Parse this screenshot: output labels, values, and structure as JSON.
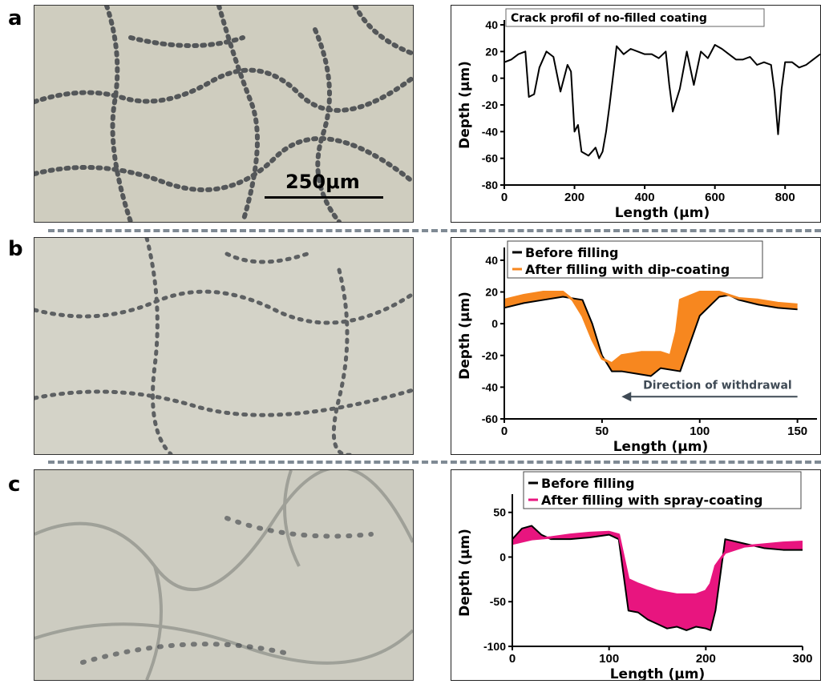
{
  "panels": [
    {
      "letter": "a"
    },
    {
      "letter": "b"
    },
    {
      "letter": "c"
    }
  ],
  "scale_bar_label": "250μm",
  "colors": {
    "before": "#000000",
    "dip_coating": "#f7871f",
    "spray_coating": "#e8157f",
    "divider": "#7f8a94",
    "micrograph_bg": "#cfcdbf",
    "crack": "#2c3038"
  },
  "chart_data": [
    {
      "type": "line",
      "annotation": "Crack profil of no-filled coating",
      "xlabel": "Length (μm)",
      "ylabel": "Depth (μm)",
      "xlim": [
        0,
        900
      ],
      "ylim": [
        -80,
        40
      ],
      "xticks": [
        0,
        200,
        400,
        600,
        800
      ],
      "yticks": [
        -80,
        -60,
        -40,
        -20,
        0,
        20,
        40
      ],
      "series": [
        {
          "color": "#000000",
          "x": [
            0,
            20,
            40,
            60,
            70,
            85,
            100,
            120,
            140,
            160,
            180,
            190,
            200,
            210,
            220,
            240,
            260,
            270,
            280,
            290,
            300,
            320,
            340,
            360,
            380,
            400,
            420,
            440,
            460,
            470,
            480,
            500,
            520,
            540,
            560,
            580,
            600,
            620,
            640,
            660,
            680,
            700,
            720,
            740,
            760,
            770,
            780,
            790,
            800,
            820,
            840,
            860,
            880,
            900
          ],
          "values": [
            12,
            14,
            18,
            20,
            -14,
            -12,
            8,
            20,
            16,
            -10,
            10,
            5,
            -40,
            -35,
            -55,
            -58,
            -52,
            -60,
            -55,
            -40,
            -20,
            24,
            18,
            22,
            20,
            18,
            18,
            15,
            20,
            -5,
            -25,
            -8,
            20,
            -5,
            20,
            15,
            25,
            22,
            18,
            14,
            14,
            16,
            10,
            12,
            10,
            -10,
            -42,
            -8,
            12,
            12,
            8,
            10,
            14,
            18
          ]
        }
      ]
    },
    {
      "type": "area",
      "xlabel": "Length (μm)",
      "ylabel": "Depth (μm)",
      "xlim": [
        0,
        160
      ],
      "ylim": [
        -60,
        45
      ],
      "xticks": [
        0,
        50,
        100,
        150
      ],
      "yticks": [
        -60,
        -40,
        -20,
        0,
        20,
        40
      ],
      "legend_position": "top",
      "annotation": "Direction of withdrawal",
      "series": [
        {
          "name": "Before filling",
          "color": "#000000",
          "x": [
            0,
            10,
            20,
            30,
            40,
            45,
            50,
            55,
            60,
            70,
            75,
            80,
            90,
            100,
            110,
            115,
            120,
            130,
            140,
            150
          ],
          "values": [
            10,
            13,
            15,
            17,
            15,
            0,
            -20,
            -30,
            -30,
            -32,
            -33,
            -28,
            -30,
            5,
            17,
            18,
            15,
            12,
            10,
            9
          ]
        },
        {
          "name": "After filling with dip-coating",
          "color": "#f7871f",
          "x": [
            0,
            10,
            20,
            30,
            35,
            40,
            45,
            50,
            55,
            60,
            70,
            80,
            85,
            88,
            90,
            100,
            110,
            115,
            120,
            130,
            140,
            150
          ],
          "values": [
            15,
            18,
            20,
            20,
            15,
            5,
            -10,
            -22,
            -25,
            -20,
            -18,
            -18,
            -20,
            -5,
            15,
            20,
            20,
            18,
            16,
            15,
            13,
            12
          ]
        }
      ]
    },
    {
      "type": "area",
      "xlabel": "Length (μm)",
      "ylabel": "Depth (μm)",
      "xlim": [
        0,
        300
      ],
      "ylim": [
        -100,
        65
      ],
      "xticks": [
        0,
        100,
        200,
        300
      ],
      "yticks": [
        -100,
        -50,
        0,
        50
      ],
      "legend_position": "top",
      "series": [
        {
          "name": "Before filling",
          "color": "#000000",
          "x": [
            0,
            10,
            20,
            30,
            40,
            60,
            80,
            100,
            110,
            115,
            120,
            130,
            140,
            150,
            160,
            170,
            180,
            190,
            200,
            205,
            210,
            220,
            240,
            260,
            280,
            300
          ],
          "values": [
            20,
            32,
            35,
            25,
            20,
            20,
            22,
            25,
            20,
            -20,
            -60,
            -62,
            -70,
            -75,
            -80,
            -78,
            -82,
            -78,
            -80,
            -82,
            -60,
            20,
            15,
            10,
            8,
            8
          ]
        },
        {
          "name": "After filling with spray-coating",
          "color": "#e8157f",
          "x": [
            0,
            20,
            40,
            60,
            80,
            100,
            110,
            115,
            120,
            130,
            150,
            170,
            190,
            200,
            205,
            210,
            220,
            240,
            260,
            280,
            300
          ],
          "values": [
            15,
            20,
            22,
            25,
            27,
            28,
            25,
            0,
            -25,
            -30,
            -38,
            -42,
            -42,
            -38,
            -30,
            -10,
            5,
            12,
            14,
            16,
            17
          ]
        }
      ]
    }
  ]
}
